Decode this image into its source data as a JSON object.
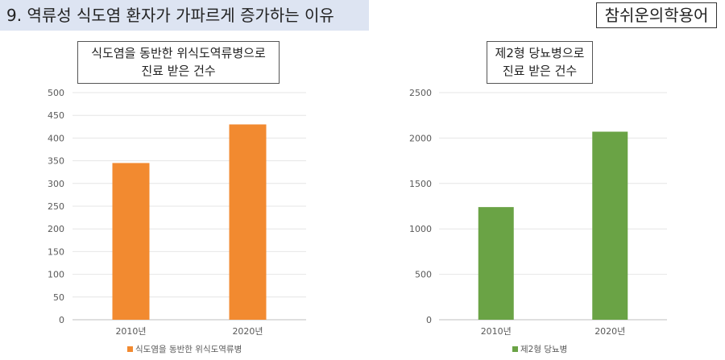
{
  "header": {
    "title": "9. 역류성 식도염 환자가 가파르게 증가하는 이유"
  },
  "brand": {
    "label": "참쉬운의학용어"
  },
  "chart_data": [
    {
      "type": "bar",
      "title_lines": [
        "식도염을 동반한 위식도역류병으로",
        "진료 받은 건수"
      ],
      "categories": [
        "2010년",
        "2020년"
      ],
      "series": [
        {
          "name": "식도염을 동반한 위식도역류병",
          "values": [
            345,
            430
          ]
        }
      ],
      "ylim": [
        0,
        500
      ],
      "yticks": [
        0,
        50,
        100,
        150,
        200,
        250,
        300,
        350,
        400,
        450,
        500
      ],
      "color": "#f28a30",
      "grid": true,
      "legend": "bottom"
    },
    {
      "type": "bar",
      "title_lines": [
        "제2형 당뇨병으로",
        "진료 받은 건수"
      ],
      "categories": [
        "2010년",
        "2020년"
      ],
      "series": [
        {
          "name": "제2형 당뇨병",
          "values": [
            1240,
            2070
          ]
        }
      ],
      "ylim": [
        0,
        2500
      ],
      "yticks": [
        0,
        500,
        1000,
        1500,
        2000,
        2500
      ],
      "color": "#6aa345",
      "grid": true,
      "legend": "bottom"
    }
  ]
}
